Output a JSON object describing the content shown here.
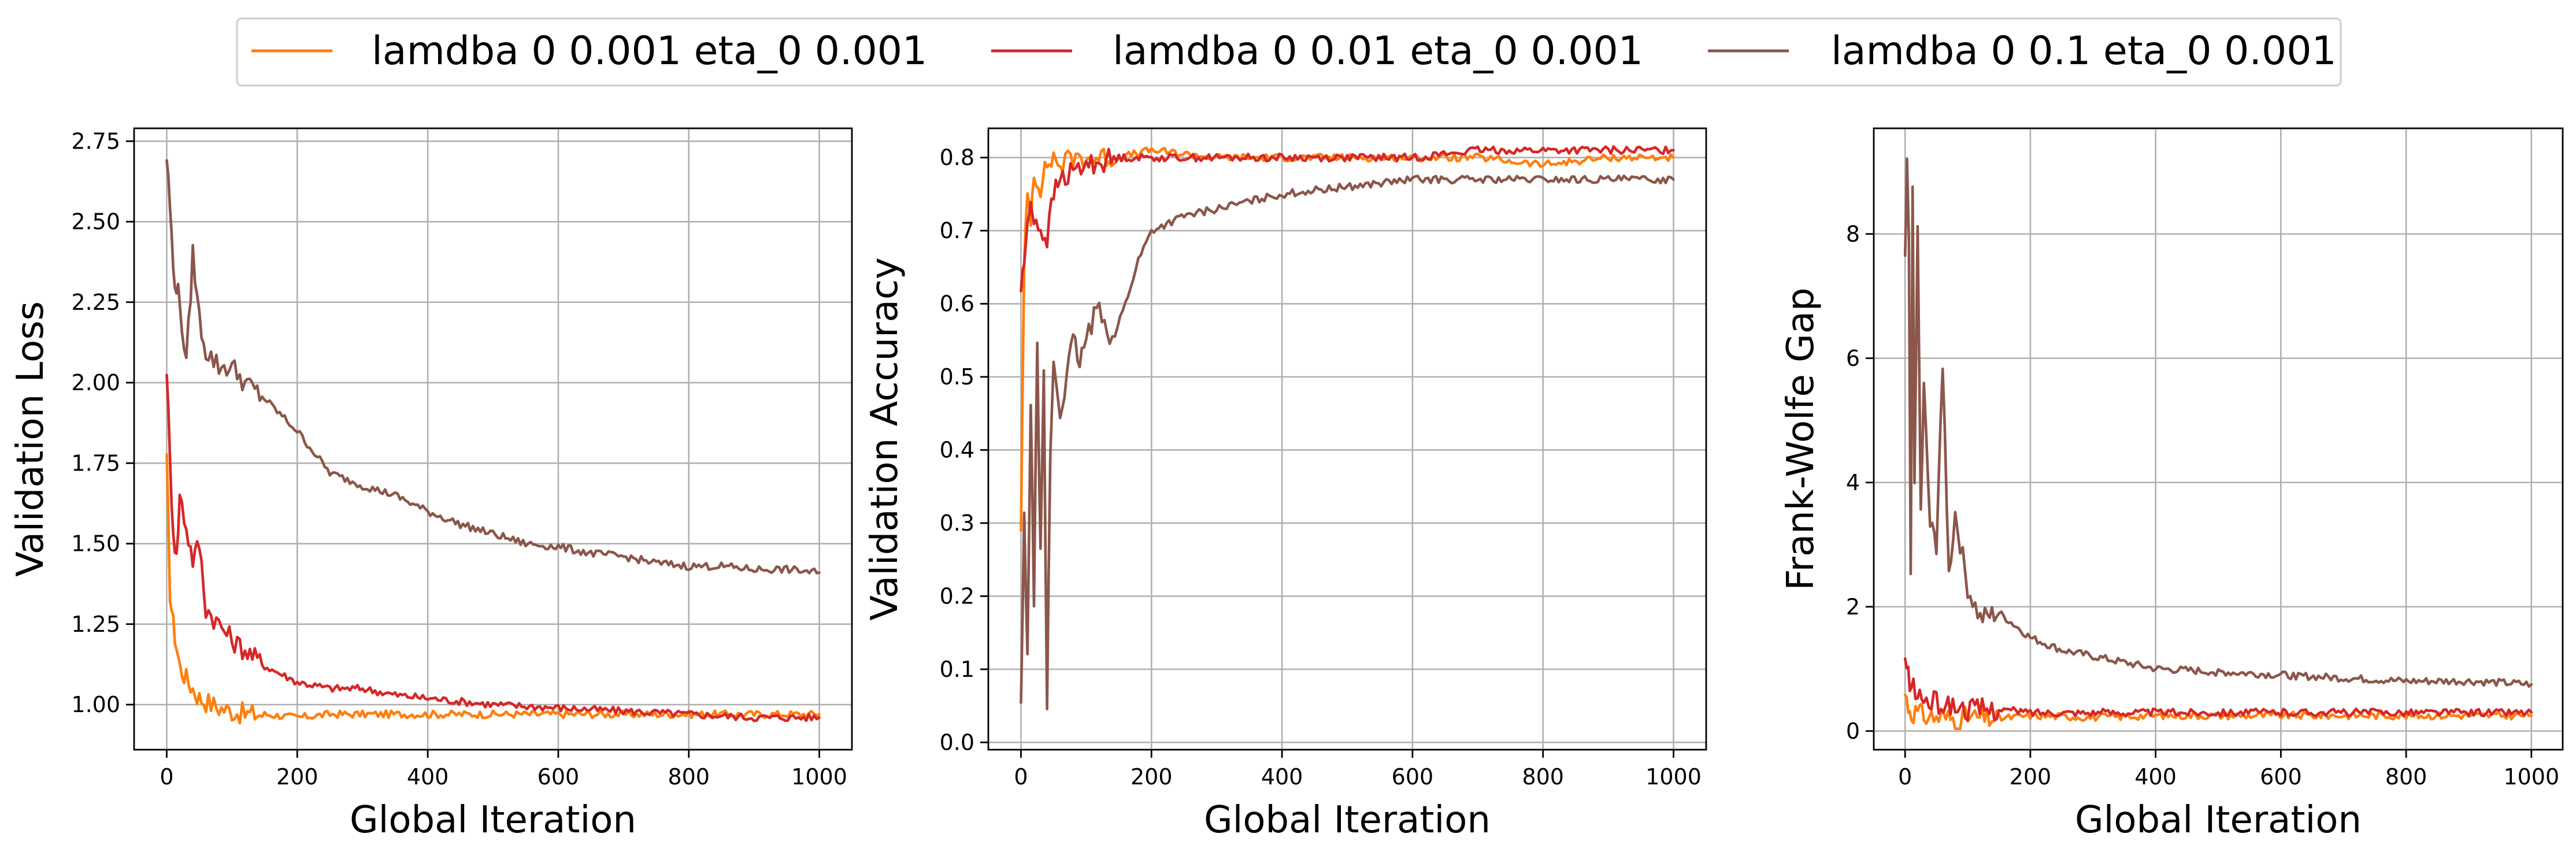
{
  "legend": {
    "placement": "top-center",
    "entries": [
      {
        "label": "lamdba 0 0.001 eta_0 0.001",
        "color": "#ff7f0e"
      },
      {
        "label": "lamdba 0 0.01 eta_0 0.001",
        "color": "#d62728"
      },
      {
        "label": "lamdba 0 0.1 eta_0 0.001",
        "color": "#8c564b"
      }
    ]
  },
  "chart_data": [
    {
      "type": "line",
      "xlabel": "Global Iteration",
      "ylabel": "Validation Loss",
      "xlim": [
        -50,
        1050
      ],
      "ylim": [
        0.86,
        2.79
      ],
      "xticks": [
        0,
        200,
        400,
        600,
        800,
        1000
      ],
      "yticks": [
        1.0,
        1.25,
        1.5,
        1.75,
        2.0,
        2.25,
        2.5,
        2.75
      ],
      "ytick_labels": [
        "1.00",
        "1.25",
        "1.50",
        "1.75",
        "2.00",
        "2.25",
        "2.50",
        "2.75"
      ],
      "grid": true,
      "series": [
        {
          "name": "lamdba 0 0.001 eta_0 0.001",
          "color": "#ff7f0e",
          "x": [
            0,
            5,
            10,
            15,
            20,
            30,
            40,
            50,
            60,
            80,
            100,
            120,
            150,
            200,
            250,
            300,
            400,
            500,
            600,
            700,
            800,
            900,
            1000
          ],
          "y": [
            1.75,
            1.35,
            1.25,
            1.18,
            1.12,
            1.08,
            1.05,
            1.02,
            1.01,
            0.99,
            0.98,
            0.97,
            0.97,
            0.96,
            0.97,
            0.97,
            0.97,
            0.97,
            0.97,
            0.97,
            0.97,
            0.97,
            0.97
          ]
        },
        {
          "name": "lamdba 0 0.01 eta_0 0.001",
          "color": "#d62728",
          "x": [
            0,
            5,
            10,
            15,
            20,
            30,
            40,
            50,
            60,
            80,
            100,
            120,
            150,
            200,
            250,
            300,
            350,
            400,
            500,
            600,
            700,
            800,
            900,
            1000
          ],
          "y": [
            2.05,
            1.75,
            1.55,
            1.45,
            1.65,
            1.55,
            1.45,
            1.5,
            1.3,
            1.25,
            1.2,
            1.17,
            1.12,
            1.07,
            1.05,
            1.05,
            1.03,
            1.02,
            1.0,
            0.99,
            0.98,
            0.97,
            0.96,
            0.96
          ]
        },
        {
          "name": "lamdba 0 0.1 eta_0 0.001",
          "color": "#8c564b",
          "x": [
            0,
            5,
            10,
            15,
            20,
            30,
            40,
            50,
            60,
            80,
            100,
            120,
            150,
            200,
            250,
            300,
            350,
            400,
            450,
            500,
            550,
            600,
            650,
            700,
            750,
            800,
            850,
            900,
            950,
            1000
          ],
          "y": [
            2.7,
            2.55,
            2.35,
            2.3,
            2.25,
            2.05,
            2.4,
            2.2,
            2.1,
            2.05,
            2.05,
            2.0,
            1.95,
            1.85,
            1.72,
            1.68,
            1.65,
            1.6,
            1.56,
            1.53,
            1.5,
            1.49,
            1.47,
            1.46,
            1.44,
            1.43,
            1.43,
            1.42,
            1.42,
            1.41
          ]
        }
      ]
    },
    {
      "type": "line",
      "xlabel": "Global Iteration",
      "ylabel": "Validation Accuracy",
      "xlim": [
        -50,
        1050
      ],
      "ylim": [
        -0.01,
        0.84
      ],
      "xticks": [
        0,
        200,
        400,
        600,
        800,
        1000
      ],
      "yticks": [
        0.0,
        0.1,
        0.2,
        0.3,
        0.4,
        0.5,
        0.6,
        0.7,
        0.8
      ],
      "ytick_labels": [
        "0.0",
        "0.1",
        "0.2",
        "0.3",
        "0.4",
        "0.5",
        "0.6",
        "0.7",
        "0.8"
      ],
      "grid": true,
      "series": [
        {
          "name": "lamdba 0 0.001 eta_0 0.001",
          "color": "#ff7f0e",
          "x": [
            0,
            5,
            10,
            15,
            20,
            30,
            40,
            50,
            60,
            80,
            100,
            150,
            200,
            300,
            400,
            500,
            600,
            700,
            800,
            900,
            1000
          ],
          "y": [
            0.3,
            0.65,
            0.75,
            0.72,
            0.78,
            0.76,
            0.79,
            0.8,
            0.79,
            0.8,
            0.8,
            0.8,
            0.81,
            0.8,
            0.8,
            0.8,
            0.8,
            0.8,
            0.79,
            0.8,
            0.8
          ]
        },
        {
          "name": "lamdba 0 0.01 eta_0 0.001",
          "color": "#d62728",
          "x": [
            0,
            5,
            10,
            15,
            20,
            30,
            40,
            50,
            60,
            80,
            100,
            150,
            200,
            300,
            400,
            500,
            600,
            700,
            800,
            900,
            1000
          ],
          "y": [
            0.62,
            0.66,
            0.7,
            0.74,
            0.72,
            0.7,
            0.69,
            0.75,
            0.77,
            0.78,
            0.79,
            0.8,
            0.8,
            0.8,
            0.8,
            0.8,
            0.8,
            0.81,
            0.81,
            0.81,
            0.81
          ]
        },
        {
          "name": "lamdba 0 0.1 eta_0 0.001",
          "color": "#8c564b",
          "x": [
            0,
            5,
            10,
            15,
            20,
            25,
            30,
            35,
            40,
            45,
            50,
            60,
            70,
            80,
            90,
            100,
            120,
            140,
            160,
            180,
            200,
            250,
            300,
            350,
            400,
            500,
            600,
            700,
            800,
            900,
            1000
          ],
          "y": [
            0.05,
            0.3,
            0.13,
            0.45,
            0.2,
            0.55,
            0.25,
            0.5,
            0.04,
            0.4,
            0.52,
            0.45,
            0.5,
            0.55,
            0.52,
            0.55,
            0.6,
            0.55,
            0.6,
            0.66,
            0.7,
            0.72,
            0.73,
            0.74,
            0.75,
            0.76,
            0.77,
            0.77,
            0.77,
            0.77,
            0.77
          ]
        }
      ]
    },
    {
      "type": "line",
      "xlabel": "Global Iteration",
      "ylabel": "Frank-Wolfe Gap",
      "xlim": [
        -50,
        1050
      ],
      "ylim": [
        -0.3,
        9.7
      ],
      "xticks": [
        0,
        200,
        400,
        600,
        800,
        1000
      ],
      "yticks": [
        0,
        2,
        4,
        6,
        8
      ],
      "ytick_labels": [
        "0",
        "2",
        "4",
        "6",
        "8"
      ],
      "grid": true,
      "series": [
        {
          "name": "lamdba 0 0.001 eta_0 0.001",
          "color": "#ff7f0e",
          "x": [
            0,
            5,
            10,
            20,
            30,
            50,
            80,
            100,
            150,
            200,
            300,
            400,
            500,
            600,
            700,
            800,
            900,
            1000
          ],
          "y": [
            0.6,
            0.4,
            0.3,
            0.3,
            0.25,
            0.22,
            0.2,
            0.22,
            0.2,
            0.25,
            0.22,
            0.25,
            0.25,
            0.25,
            0.25,
            0.25,
            0.25,
            0.25
          ]
        },
        {
          "name": "lamdba 0 0.01 eta_0 0.001",
          "color": "#d62728",
          "x": [
            0,
            5,
            10,
            20,
            30,
            50,
            80,
            100,
            150,
            200,
            300,
            400,
            500,
            600,
            700,
            800,
            900,
            1000
          ],
          "y": [
            1.1,
            0.9,
            0.7,
            0.6,
            0.5,
            0.45,
            0.4,
            0.35,
            0.35,
            0.3,
            0.3,
            0.3,
            0.3,
            0.3,
            0.3,
            0.3,
            0.3,
            0.3
          ]
        },
        {
          "name": "lamdba 0 0.1 eta_0 0.001",
          "color": "#8c564b",
          "x": [
            0,
            3,
            6,
            9,
            12,
            15,
            20,
            25,
            30,
            40,
            50,
            60,
            70,
            80,
            100,
            120,
            150,
            200,
            250,
            300,
            400,
            500,
            600,
            700,
            800,
            900,
            1000
          ],
          "y": [
            7.5,
            9.2,
            7.8,
            2.5,
            8.7,
            4.0,
            8.3,
            3.5,
            5.5,
            3.3,
            3.0,
            6.0,
            2.5,
            3.5,
            2.3,
            1.8,
            1.9,
            1.5,
            1.3,
            1.2,
            1.0,
            0.95,
            0.9,
            0.85,
            0.8,
            0.8,
            0.75
          ]
        }
      ]
    }
  ]
}
